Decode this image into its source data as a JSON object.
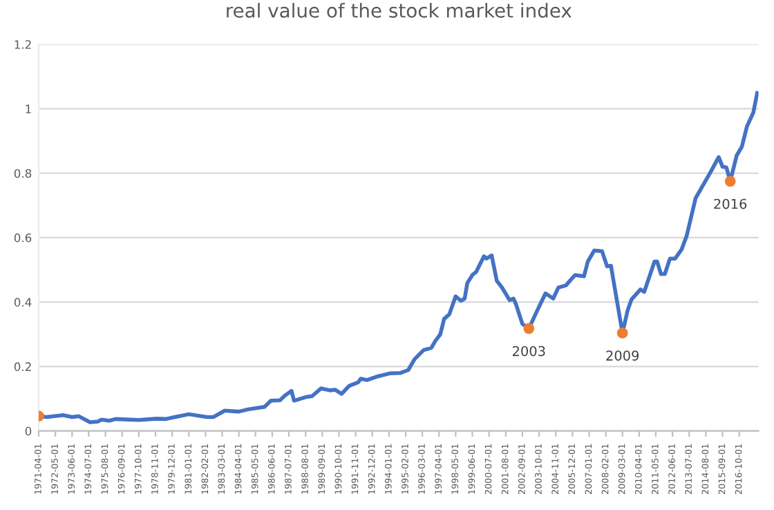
{
  "chart_data": {
    "type": "line",
    "title": "real value of the stock market index",
    "series": [
      {
        "color": "#4472c4",
        "x": [
          "1971-04",
          "1971-10",
          "1972-11",
          "1973-06",
          "1973-11",
          "1974-08",
          "1975-02",
          "1975-05",
          "1975-11",
          "1976-04",
          "1977-10",
          "1978-12",
          "1979-07",
          "1980-02",
          "1981-01",
          "1982-03",
          "1982-08",
          "1983-05",
          "1984-04",
          "1984-11",
          "1985-04",
          "1985-12",
          "1986-05",
          "1986-12",
          "1987-04",
          "1987-09",
          "1987-11",
          "1988-09",
          "1989-01",
          "1989-08",
          "1990-03",
          "1990-07",
          "1990-12",
          "1991-06",
          "1992-01",
          "1992-03",
          "1992-08",
          "1993-03",
          "1994-02",
          "1994-10",
          "1995-04",
          "1995-09",
          "1996-04",
          "1996-10",
          "1997-01",
          "1997-05",
          "1997-08",
          "1997-12",
          "1998-05",
          "1998-09",
          "1998-12",
          "1999-02",
          "1999-06",
          "1999-09",
          "2000-03",
          "2000-05",
          "2000-09",
          "2001-01",
          "2001-05",
          "2001-11",
          "2002-02",
          "2002-04",
          "2002-09",
          "2003-02",
          "2003-08",
          "2004-03",
          "2004-09",
          "2005-01",
          "2005-07",
          "2005-10",
          "2006-02",
          "2006-09",
          "2006-12",
          "2007-05",
          "2007-11",
          "2008-03",
          "2008-06",
          "2008-08",
          "2009-03",
          "2009-07",
          "2009-10",
          "2010-05",
          "2010-08",
          "2011-04",
          "2011-06",
          "2011-09",
          "2011-12",
          "2012-04",
          "2012-08",
          "2013-01",
          "2013-05",
          "2013-12",
          "2014-07",
          "2014-11",
          "2015-06",
          "2015-09",
          "2015-12",
          "2016-03",
          "2016-08",
          "2016-12",
          "2017-04",
          "2017-09",
          "2017-12"
        ],
        "values": [
          0.046,
          0.043,
          0.049,
          0.043,
          0.046,
          0.027,
          0.029,
          0.035,
          0.032,
          0.037,
          0.034,
          0.038,
          0.037,
          0.043,
          0.052,
          0.043,
          0.043,
          0.063,
          0.06,
          0.067,
          0.07,
          0.075,
          0.094,
          0.095,
          0.11,
          0.124,
          0.094,
          0.106,
          0.108,
          0.132,
          0.126,
          0.128,
          0.115,
          0.14,
          0.151,
          0.162,
          0.158,
          0.168,
          0.179,
          0.18,
          0.189,
          0.223,
          0.251,
          0.258,
          0.279,
          0.3,
          0.348,
          0.362,
          0.418,
          0.404,
          0.411,
          0.459,
          0.484,
          0.494,
          0.542,
          0.535,
          0.545,
          0.466,
          0.446,
          0.406,
          0.411,
          0.393,
          0.332,
          0.318,
          0.369,
          0.427,
          0.411,
          0.445,
          0.452,
          0.466,
          0.484,
          0.48,
          0.526,
          0.56,
          0.558,
          0.511,
          0.513,
          0.466,
          0.304,
          0.374,
          0.408,
          0.439,
          0.432,
          0.526,
          0.526,
          0.487,
          0.487,
          0.535,
          0.535,
          0.563,
          0.605,
          0.723,
          0.771,
          0.799,
          0.85,
          0.82,
          0.818,
          0.775,
          0.855,
          0.882,
          0.945,
          0.989,
          1.049
        ]
      },
      {
        "type": "scatter",
        "color": "#ed7d31",
        "marker": "circle",
        "x": [
          "1971-04",
          "2003-02",
          "2009-03",
          "2016-03"
        ],
        "values": [
          0.046,
          0.318,
          0.304,
          0.775
        ]
      }
    ],
    "annotations": [
      {
        "text": "2003",
        "x": "2003-02",
        "y": 0.318
      },
      {
        "text": "2009",
        "x": "2009-03",
        "y": 0.304
      },
      {
        "text": "2016",
        "x": "2016-03",
        "y": 0.775
      }
    ],
    "xlim": [
      "1971-04-01",
      "2018-01-01"
    ],
    "xticks": [
      "1971-04-01",
      "1972-05-01",
      "1973-06-01",
      "1974-07-01",
      "1975-08-01",
      "1976-09-01",
      "1977-10-01",
      "1978-11-01",
      "1979-12-01",
      "1981-01-01",
      "1982-02-01",
      "1983-03-01",
      "1984-04-01",
      "1985-05-01",
      "1986-06-01",
      "1987-07-01",
      "1988-08-01",
      "1989-09-01",
      "1990-10-01",
      "1991-11-01",
      "1992-12-01",
      "1994-01-01",
      "1995-02-01",
      "1996-03-01",
      "1997-04-01",
      "1998-05-01",
      "1999-06-01",
      "2000-07-01",
      "2001-08-01",
      "2002-09-01",
      "2003-10-01",
      "2004-11-01",
      "2005-12-01",
      "2007-01-01",
      "2008-02-01",
      "2009-03-01",
      "2010-04-01",
      "2011-05-01",
      "2012-06-01",
      "2013-07-01",
      "2014-08-01",
      "2015-09-01",
      "2016-10-01"
    ],
    "ylim": [
      0,
      1.2
    ],
    "yticks": [
      0,
      0.2,
      0.4,
      0.6,
      0.8,
      1,
      1.2
    ],
    "grid": "y",
    "line_style": "solid"
  }
}
